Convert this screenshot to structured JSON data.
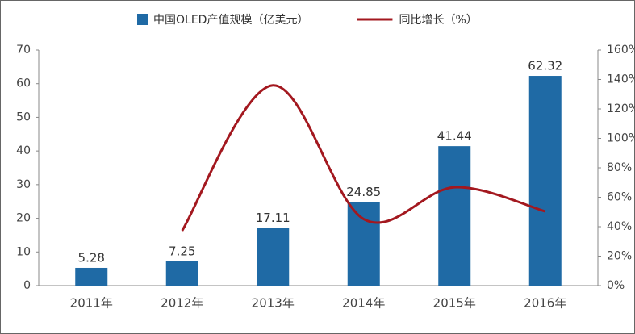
{
  "chart_data": {
    "type": "bar",
    "categories": [
      "2011年",
      "2012年",
      "2013年",
      "2014年",
      "2015年",
      "2016年"
    ],
    "series": [
      {
        "name": "中国OLED产值规模（亿美元）",
        "type": "bar",
        "color": "#1f6aa5",
        "values": [
          5.28,
          7.25,
          17.11,
          24.85,
          41.44,
          62.32
        ]
      },
      {
        "name": "同比增长（%）",
        "type": "line",
        "axis": "y2",
        "color": "#a3181f",
        "values": [
          null,
          37.3,
          136,
          45.2,
          66.8,
          50.4
        ]
      }
    ],
    "ylim": [
      0,
      70
    ],
    "yticks": [
      0,
      10,
      20,
      30,
      40,
      50,
      60,
      70
    ],
    "y2lim": [
      0,
      160
    ],
    "y2ticks": [
      {
        "value": 0,
        "label": "0%"
      },
      {
        "value": 20,
        "label": "20%"
      },
      {
        "value": 40,
        "label": "40%"
      },
      {
        "value": 60,
        "label": "60%"
      },
      {
        "value": 80,
        "label": "80%"
      },
      {
        "value": 100,
        "label": "100%"
      },
      {
        "value": 120,
        "label": "120%"
      },
      {
        "value": 140,
        "label": "140%"
      },
      {
        "value": 160,
        "label": "160%"
      }
    ],
    "legend": "top"
  }
}
